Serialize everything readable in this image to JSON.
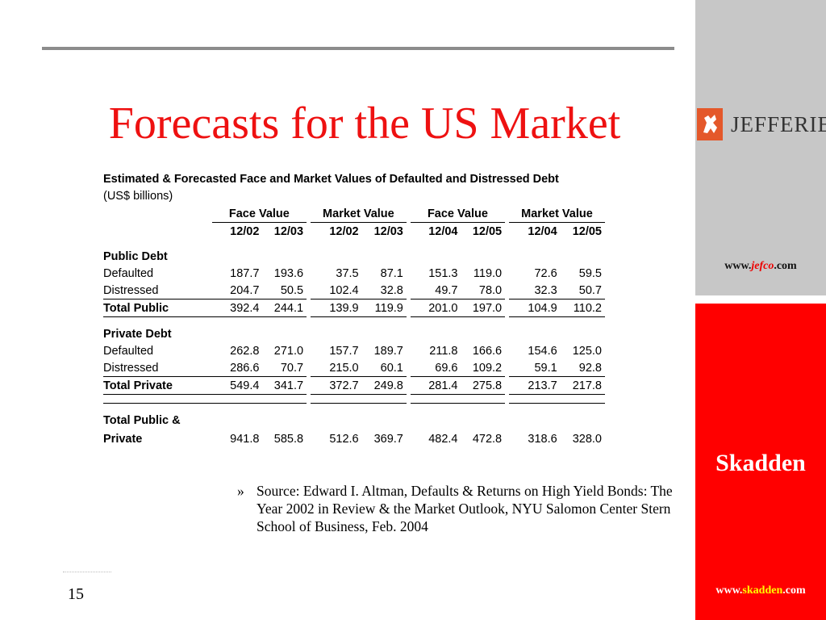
{
  "slide": {
    "title": "Forecasts for the US Market",
    "page_number": "15"
  },
  "sidebar": {
    "logo_text": "JEFFERIES",
    "jefco_url": {
      "pre": "www.",
      "mid": "jefco",
      "post": ".com"
    },
    "skadden_word": "Skadden",
    "skadden_url": {
      "pre": "www.",
      "mid": "skadden",
      "post": ".com"
    },
    "colors": {
      "top_bg": "#c7c7c7",
      "bottom_bg": "#ff0000",
      "logo_mark": "#e4582a"
    }
  },
  "table": {
    "caption": "Estimated & Forecasted Face and Market Values of Defaulted and Distressed Debt",
    "units": "(US$ billions)",
    "groups": [
      "Face Value",
      "Market Value",
      "Face Value",
      "Market Value"
    ],
    "periods": [
      "12/02",
      "12/03",
      "12/02",
      "12/03",
      "12/04",
      "12/05",
      "12/04",
      "12/05"
    ],
    "sections": {
      "public": {
        "heading": "Public Debt",
        "rows": [
          {
            "label": "Defaulted",
            "values": [
              "187.7",
              "193.6",
              "37.5",
              "87.1",
              "151.3",
              "119.0",
              "72.6",
              "59.5"
            ]
          },
          {
            "label": "Distressed",
            "values": [
              "204.7",
              "50.5",
              "102.4",
              "32.8",
              "49.7",
              "78.0",
              "32.3",
              "50.7"
            ]
          }
        ],
        "total": {
          "label": "Total Public",
          "values": [
            "392.4",
            "244.1",
            "139.9",
            "119.9",
            "201.0",
            "197.0",
            "104.9",
            "110.2"
          ]
        }
      },
      "private": {
        "heading": "Private Debt",
        "rows": [
          {
            "label": "Defaulted",
            "values": [
              "262.8",
              "271.0",
              "157.7",
              "189.7",
              "211.8",
              "166.6",
              "154.6",
              "125.0"
            ]
          },
          {
            "label": "Distressed",
            "values": [
              "286.6",
              "70.7",
              "215.0",
              "60.1",
              "69.6",
              "109.2",
              "59.1",
              "92.8"
            ]
          }
        ],
        "total": {
          "label": "Total Private",
          "values": [
            "549.4",
            "341.7",
            "372.7",
            "249.8",
            "281.4",
            "275.8",
            "213.7",
            "217.8"
          ]
        }
      }
    },
    "grand_total": {
      "label_line1": "Total Public &",
      "label_line2": "Private",
      "values": [
        "941.8",
        "585.8",
        "512.6",
        "369.7",
        "482.4",
        "472.8",
        "318.6",
        "328.0"
      ]
    }
  },
  "source": {
    "bullet": "»",
    "text": "Source: Edward I. Altman, Defaults & Returns on High Yield Bonds: The Year 2002 in Review & the Market Outlook, NYU Salomon Center Stern School of Business, Feb. 2004"
  }
}
